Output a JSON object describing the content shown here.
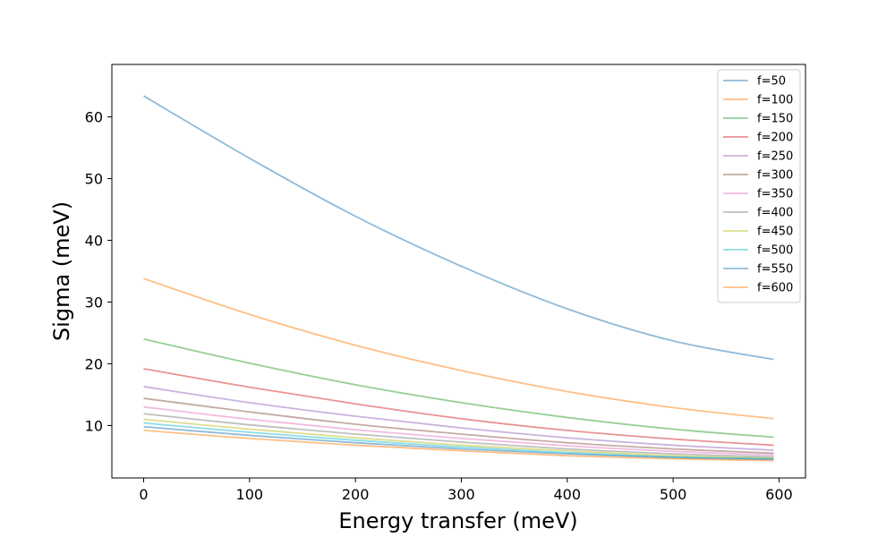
{
  "chart_data": {
    "type": "line",
    "title": "",
    "xlabel": "Energy transfer (meV)",
    "ylabel": "Sigma (meV)",
    "xlim": [
      -30,
      625
    ],
    "ylim": [
      1.5,
      68.5
    ],
    "xticks": [
      0,
      100,
      200,
      300,
      400,
      500,
      600
    ],
    "yticks": [
      10,
      20,
      30,
      40,
      50,
      60
    ],
    "legend_position": "top-right",
    "grid": false,
    "x": [
      0,
      100,
      200,
      300,
      400,
      500,
      595
    ],
    "series": [
      {
        "name": "f=50",
        "color": "#1f77b4",
        "values": [
          63.4,
          53.3,
          43.9,
          35.8,
          28.9,
          23.7,
          20.7
        ]
      },
      {
        "name": "f=100",
        "color": "#ff7f0e",
        "values": [
          33.8,
          28.0,
          23.0,
          18.9,
          15.5,
          12.9,
          11.1
        ]
      },
      {
        "name": "f=150",
        "color": "#2ca02c",
        "values": [
          24.0,
          20.1,
          16.6,
          13.7,
          11.3,
          9.4,
          8.1
        ]
      },
      {
        "name": "f=200",
        "color": "#d62728",
        "values": [
          19.2,
          16.2,
          13.5,
          11.1,
          9.2,
          7.8,
          6.8
        ]
      },
      {
        "name": "f=250",
        "color": "#9467bd",
        "values": [
          16.3,
          13.7,
          11.5,
          9.6,
          8.0,
          6.8,
          6.0
        ]
      },
      {
        "name": "f=300",
        "color": "#8c564b",
        "values": [
          14.4,
          12.2,
          10.2,
          8.6,
          7.2,
          6.2,
          5.5
        ]
      },
      {
        "name": "f=350",
        "color": "#e377c2",
        "values": [
          13.0,
          11.0,
          9.3,
          7.9,
          6.7,
          5.8,
          5.2
        ]
      },
      {
        "name": "f=400",
        "color": "#7f7f7f",
        "values": [
          11.9,
          10.1,
          8.6,
          7.3,
          6.2,
          5.4,
          4.9
        ]
      },
      {
        "name": "f=450",
        "color": "#bcbd22",
        "values": [
          11.0,
          9.4,
          8.0,
          6.8,
          5.9,
          5.1,
          4.7
        ]
      },
      {
        "name": "f=500",
        "color": "#17becf",
        "values": [
          10.4,
          8.9,
          7.6,
          6.5,
          5.6,
          4.9,
          4.6
        ]
      },
      {
        "name": "f=550",
        "color": "#1f77b4",
        "values": [
          9.8,
          8.4,
          7.2,
          6.2,
          5.4,
          4.8,
          4.5
        ]
      },
      {
        "name": "f=600",
        "color": "#ff7f0e",
        "values": [
          9.2,
          7.9,
          6.8,
          5.9,
          5.1,
          4.6,
          4.3
        ]
      }
    ]
  }
}
